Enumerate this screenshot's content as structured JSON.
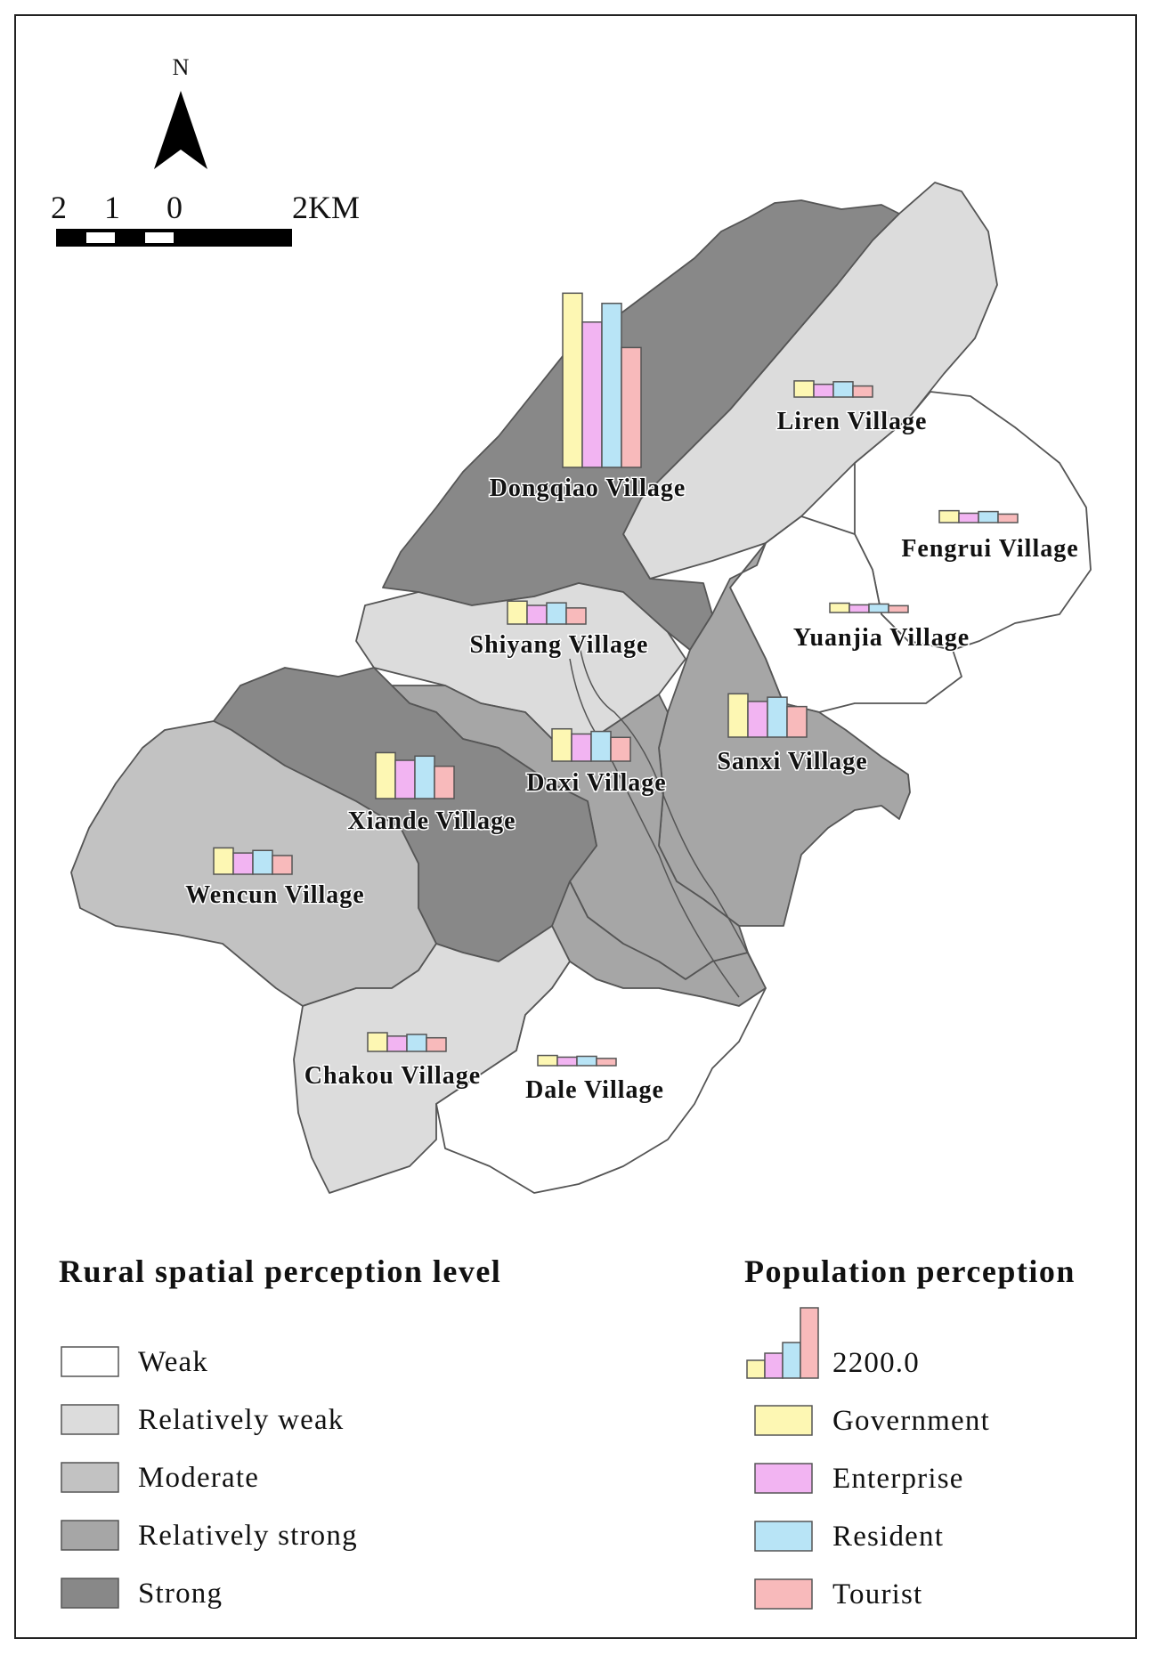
{
  "north_label": "N",
  "scale_bar": {
    "labels": [
      "2",
      "1",
      "0",
      "2KM"
    ]
  },
  "colors": {
    "weak": "#ffffff",
    "relatively_weak": "#dcdcdc",
    "moderate": "#c2c2c2",
    "relatively_strong": "#a6a6a6",
    "strong": "#888888",
    "government": "#fdf7b3",
    "enterprise": "#f2b4f2",
    "resident": "#b8e4f6",
    "tourist": "#f8babb"
  },
  "villages": [
    {
      "name": "Dongqiao Village",
      "level": "strong",
      "values": [
        2050,
        1710,
        1930,
        1410
      ]
    },
    {
      "name": "Liren Village",
      "level": "relatively_weak",
      "values": [
        190,
        150,
        180,
        130
      ]
    },
    {
      "name": "Fengrui Village",
      "level": "weak",
      "values": [
        140,
        110,
        130,
        100
      ]
    },
    {
      "name": "Shiyang Village",
      "level": "relatively_weak",
      "values": [
        270,
        220,
        250,
        190
      ]
    },
    {
      "name": "Yuanjia Village",
      "level": "weak",
      "values": [
        110,
        90,
        100,
        80
      ]
    },
    {
      "name": "Sanxi Village",
      "level": "relatively_strong",
      "values": [
        510,
        420,
        470,
        360
      ]
    },
    {
      "name": "Daxi Village",
      "level": "relatively_strong",
      "values": [
        380,
        320,
        350,
        280
      ]
    },
    {
      "name": "Xiande Village",
      "level": "strong",
      "values": [
        540,
        450,
        500,
        380
      ]
    },
    {
      "name": "Wencun Village",
      "level": "moderate",
      "values": [
        310,
        250,
        280,
        220
      ]
    },
    {
      "name": "Chakou Village",
      "level": "relatively_weak",
      "values": [
        220,
        180,
        200,
        160
      ]
    },
    {
      "name": "Dale Village",
      "level": "weak",
      "values": [
        120,
        100,
        110,
        85
      ]
    }
  ],
  "legend_spatial": {
    "title": "Rural spatial perception level",
    "items": [
      "Weak",
      "Relatively weak",
      "Moderate",
      "Relatively strong",
      "Strong"
    ]
  },
  "legend_population": {
    "title": "Population perception",
    "reference_value": "2200.0",
    "items": [
      "Government",
      "Enterprise",
      "Resident",
      "Tourist"
    ]
  }
}
